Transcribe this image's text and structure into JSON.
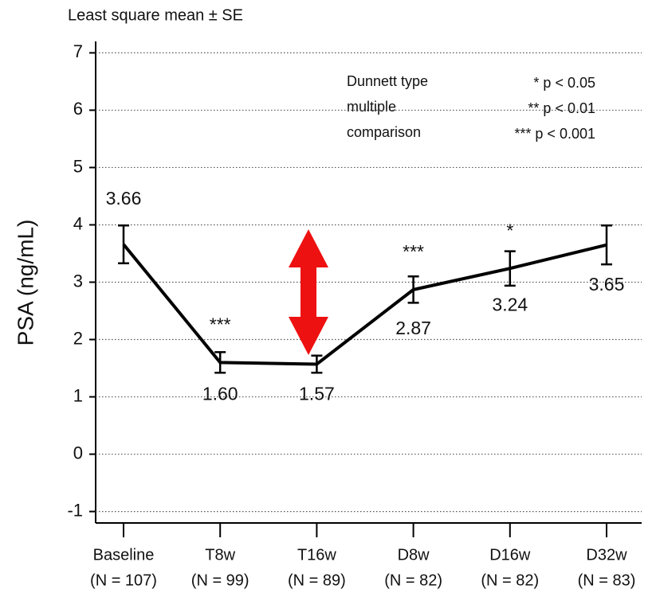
{
  "chart_data": {
    "type": "line",
    "title": "Least square mean ± SE",
    "y_label": "PSA (ng/mL)",
    "categories": [
      "Baseline",
      "T8w",
      "T16w",
      "D8w",
      "D16w",
      "D32w"
    ],
    "n_labels": [
      "(N = 107)",
      "(N = 99)",
      "(N = 89)",
      "(N = 82)",
      "(N = 82)",
      "(N = 83)"
    ],
    "values": [
      3.66,
      1.6,
      1.57,
      2.87,
      3.24,
      3.65
    ],
    "value_labels": [
      "3.66",
      "1.60",
      "1.57",
      "2.87",
      "3.24",
      "3.65"
    ],
    "errors": [
      0.33,
      0.18,
      0.15,
      0.23,
      0.3,
      0.34
    ],
    "significance": [
      null,
      "***",
      "**",
      "***",
      "*",
      null
    ],
    "color": "#000000",
    "ylim": [
      -1.2,
      7.2
    ],
    "yticks": [
      -1,
      0,
      1,
      2,
      3,
      4,
      5,
      6,
      7
    ],
    "grid": true,
    "legend": {
      "title_lines": [
        "Dunnett type",
        "multiple",
        "comparison"
      ],
      "entries": [
        "* p < 0.05",
        "** p < 0.01",
        "*** p < 0.001"
      ]
    }
  }
}
